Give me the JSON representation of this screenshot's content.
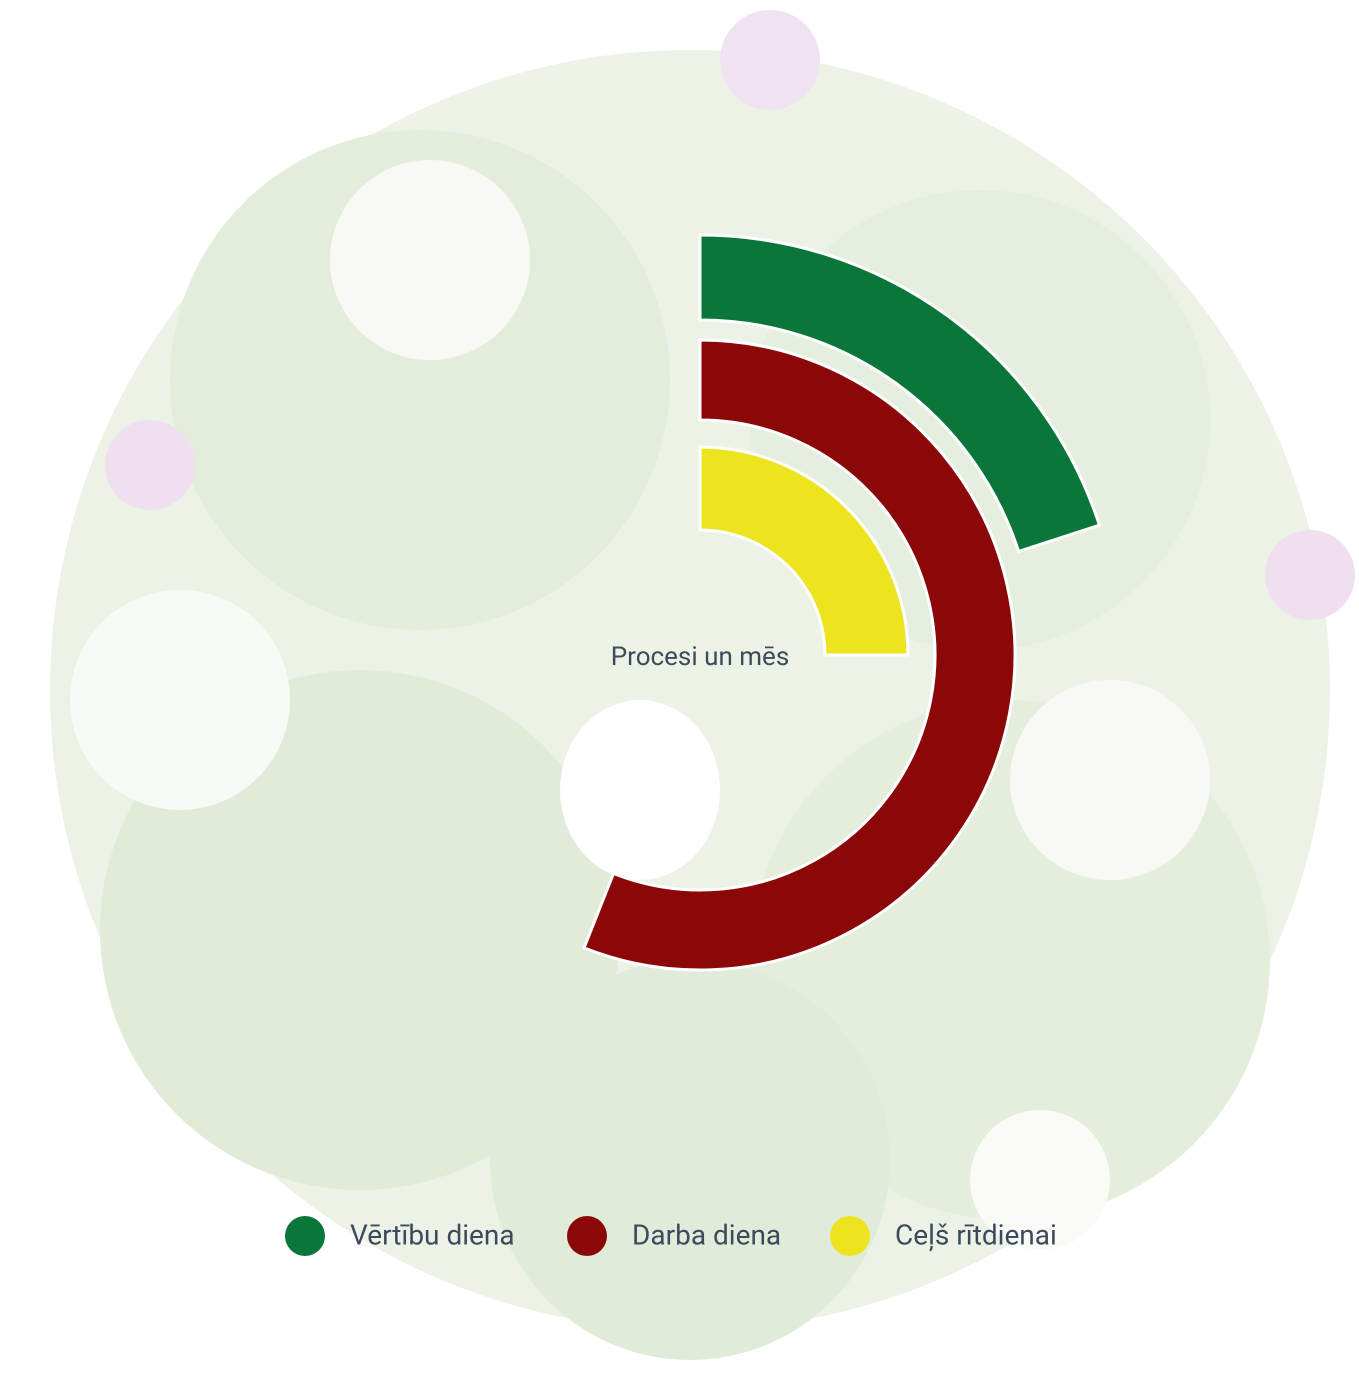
{
  "chart_data": {
    "type": "radialBar",
    "title": "Procesi un mēs",
    "categories": [
      "Vērtību diena",
      "Darba diena",
      "Ceļš rītdienai"
    ],
    "values": [
      20,
      56,
      25
    ],
    "colors": [
      "#0b763a",
      "#8c0808",
      "#ede420"
    ],
    "ylim": [
      0,
      100
    ]
  }
}
